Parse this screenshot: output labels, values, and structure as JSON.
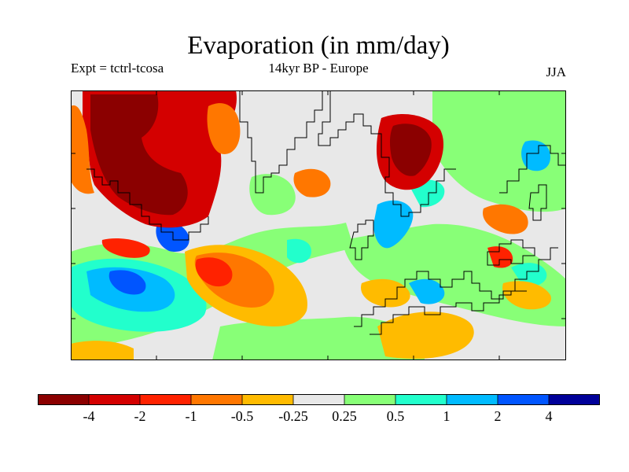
{
  "title": "Evaporation (in mm/day)",
  "subtitle_left": "Expt = tctrl-tcosa",
  "subtitle_center": "14kyr BP - Europe",
  "subtitle_right": "JJA",
  "colorbar": {
    "colors": [
      "#8b0000",
      "#d40000",
      "#ff2200",
      "#ff7700",
      "#ffbb00",
      "#e8e8e8",
      "#88ff77",
      "#22ffcc",
      "#00bbff",
      "#0055ff",
      "#000099"
    ],
    "labels": [
      "-4",
      "-2",
      "-1",
      "-0.5",
      "-0.25",
      "0.25",
      "0.5",
      "1",
      "2",
      "4"
    ]
  },
  "map": {
    "background": "#e8e8e8",
    "land_outline_color": "#000000",
    "region": "Europe / North Atlantic"
  }
}
